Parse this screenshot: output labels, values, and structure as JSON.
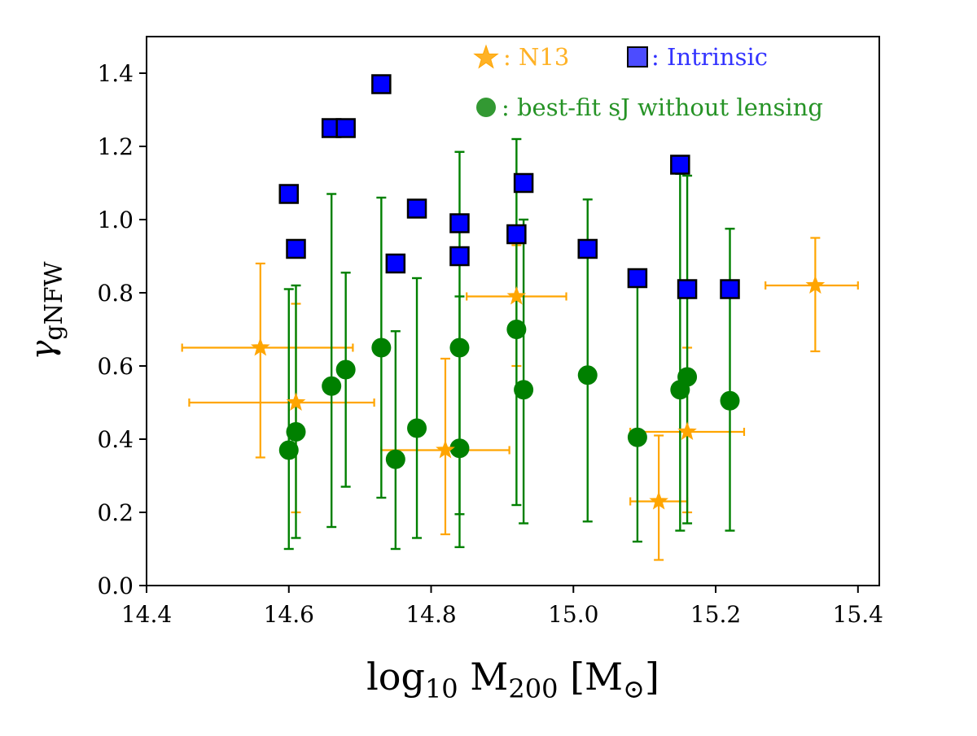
{
  "chart_data": {
    "type": "scatter",
    "title": "",
    "xlabel": "log₁₀ M₂₀₀ [M⊙]",
    "ylabel": "γgNFW",
    "xlim": [
      14.4,
      15.43
    ],
    "ylim": [
      0.0,
      1.5
    ],
    "xticks": [
      14.4,
      14.6,
      14.8,
      15.0,
      15.2,
      15.4
    ],
    "xtick_labels": [
      "14.4",
      "14.6",
      "14.8",
      "15.0",
      "15.2",
      "15.4"
    ],
    "yticks": [
      0.0,
      0.2,
      0.4,
      0.6,
      0.8,
      1.0,
      1.2,
      1.4
    ],
    "ytick_labels": [
      "0.0",
      "0.2",
      "0.4",
      "0.6",
      "0.8",
      "1.0",
      "1.2",
      "1.4"
    ],
    "grid": false,
    "legend_position": "top-right",
    "series": [
      {
        "name": "N13",
        "legend_label": ": N13",
        "marker": "star",
        "color": "#FFA500",
        "points": [
          {
            "x": 14.56,
            "y": 0.65,
            "xerr": [
              14.45,
              14.69
            ],
            "yerr": [
              0.35,
              0.88
            ]
          },
          {
            "x": 14.61,
            "y": 0.5,
            "xerr": [
              14.46,
              14.72
            ],
            "yerr": [
              0.2,
              0.77
            ]
          },
          {
            "x": 14.82,
            "y": 0.37,
            "xerr": [
              14.73,
              14.91
            ],
            "yerr": [
              0.14,
              0.62
            ]
          },
          {
            "x": 14.92,
            "y": 0.79,
            "xerr": [
              14.85,
              14.99
            ],
            "yerr": [
              0.6,
              0.93
            ]
          },
          {
            "x": 15.12,
            "y": 0.23,
            "xerr": [
              15.08,
              15.16
            ],
            "yerr": [
              0.07,
              0.41
            ]
          },
          {
            "x": 15.16,
            "y": 0.42,
            "xerr": [
              15.08,
              15.24
            ],
            "yerr": [
              0.2,
              0.65
            ]
          },
          {
            "x": 15.34,
            "y": 0.82,
            "xerr": [
              15.27,
              15.4
            ],
            "yerr": [
              0.64,
              0.95
            ]
          }
        ]
      },
      {
        "name": "Intrinsic",
        "legend_label": ": Intrinsic",
        "marker": "square",
        "color": "#0000FF",
        "points": [
          {
            "x": 14.6,
            "y": 1.07
          },
          {
            "x": 14.61,
            "y": 0.92
          },
          {
            "x": 14.66,
            "y": 1.25
          },
          {
            "x": 14.68,
            "y": 1.25
          },
          {
            "x": 14.73,
            "y": 1.37
          },
          {
            "x": 14.75,
            "y": 0.88
          },
          {
            "x": 14.78,
            "y": 1.03
          },
          {
            "x": 14.84,
            "y": 0.99
          },
          {
            "x": 14.84,
            "y": 0.9
          },
          {
            "x": 14.92,
            "y": 0.96
          },
          {
            "x": 14.93,
            "y": 1.1
          },
          {
            "x": 15.02,
            "y": 0.92
          },
          {
            "x": 15.09,
            "y": 0.84
          },
          {
            "x": 15.15,
            "y": 1.15
          },
          {
            "x": 15.16,
            "y": 0.81
          },
          {
            "x": 15.22,
            "y": 0.81
          }
        ]
      },
      {
        "name": "best-fit sJ without lensing",
        "legend_label": ": best-fit sJ without lensing",
        "marker": "circle",
        "color": "#008000",
        "points": [
          {
            "x": 14.6,
            "y": 0.37,
            "yerr": [
              0.1,
              0.81
            ]
          },
          {
            "x": 14.61,
            "y": 0.42,
            "yerr": [
              0.13,
              0.82
            ]
          },
          {
            "x": 14.66,
            "y": 0.545,
            "yerr": [
              0.16,
              1.07
            ]
          },
          {
            "x": 14.68,
            "y": 0.59,
            "yerr": [
              0.27,
              0.855
            ]
          },
          {
            "x": 14.73,
            "y": 0.65,
            "yerr": [
              0.24,
              1.06
            ]
          },
          {
            "x": 14.75,
            "y": 0.345,
            "yerr": [
              0.1,
              0.695
            ]
          },
          {
            "x": 14.78,
            "y": 0.43,
            "yerr": [
              0.13,
              0.84
            ]
          },
          {
            "x": 14.84,
            "y": 0.375,
            "yerr": [
              0.105,
              0.79
            ]
          },
          {
            "x": 14.84,
            "y": 0.65,
            "yerr": [
              0.195,
              1.185
            ]
          },
          {
            "x": 14.92,
            "y": 0.7,
            "yerr": [
              0.22,
              1.22
            ]
          },
          {
            "x": 14.93,
            "y": 0.535,
            "yerr": [
              0.17,
              1.0
            ]
          },
          {
            "x": 15.02,
            "y": 0.575,
            "yerr": [
              0.175,
              1.055
            ]
          },
          {
            "x": 15.09,
            "y": 0.405,
            "yerr": [
              0.12,
              0.82
            ]
          },
          {
            "x": 15.15,
            "y": 0.535,
            "yerr": [
              0.15,
              1.125
            ]
          },
          {
            "x": 15.16,
            "y": 0.57,
            "yerr": [
              0.17,
              1.12
            ]
          },
          {
            "x": 15.22,
            "y": 0.505,
            "yerr": [
              0.15,
              0.975
            ]
          }
        ]
      }
    ]
  }
}
